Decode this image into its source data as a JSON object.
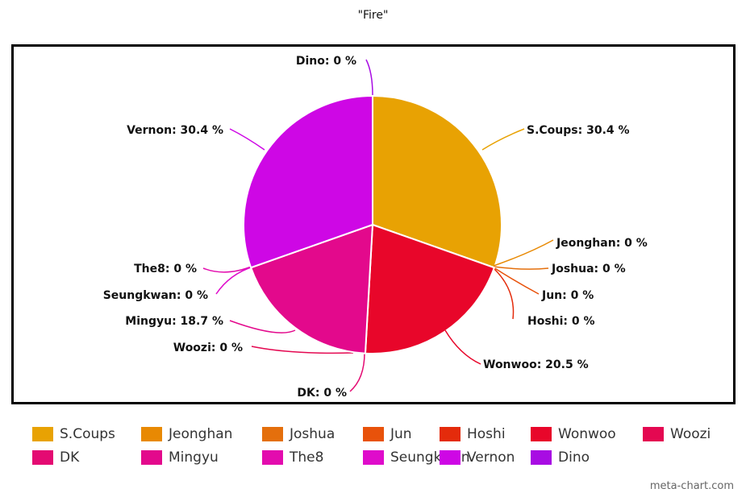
{
  "chart_data": {
    "type": "pie",
    "title": "\"Fire\"",
    "slices": [
      {
        "name": "S.Coups",
        "value": 30.4,
        "label": "S.Coups: 30.4 %",
        "color": "#E8A203"
      },
      {
        "name": "Jeonghan",
        "value": 0,
        "label": "Jeonghan: 0 %",
        "color": "#E88903"
      },
      {
        "name": "Joshua",
        "value": 0,
        "label": "Joshua: 0 %",
        "color": "#E46F0C"
      },
      {
        "name": "Jun",
        "value": 0,
        "label": "Jun: 0 %",
        "color": "#E8520B"
      },
      {
        "name": "Hoshi",
        "value": 0,
        "label": "Hoshi: 0 %",
        "color": "#E42B0B"
      },
      {
        "name": "Wonwoo",
        "value": 20.5,
        "label": "Wonwoo: 20.5 %",
        "color": "#E8062A"
      },
      {
        "name": "Woozi",
        "value": 0,
        "label": "Woozi: 0 %",
        "color": "#E40851"
      },
      {
        "name": "DK",
        "value": 0,
        "label": "DK: 0 %",
        "color": "#E40A72"
      },
      {
        "name": "Mingyu",
        "value": 18.7,
        "label": "Mingyu: 18.7 %",
        "color": "#E3098C"
      },
      {
        "name": "The8",
        "value": 0,
        "label": "The8: 0 %",
        "color": "#E30CAE"
      },
      {
        "name": "Seungkwan",
        "value": 0,
        "label": "Seungkwan: 0 %",
        "color": "#DF0CCB"
      },
      {
        "name": "Vernon",
        "value": 30.4,
        "label": "Vernon: 30.4 %",
        "color": "#CE07E5"
      },
      {
        "name": "Dino",
        "value": 0,
        "label": "Dino: 0 %",
        "color": "#A80CE3"
      }
    ]
  },
  "credit": "meta-chart.com"
}
